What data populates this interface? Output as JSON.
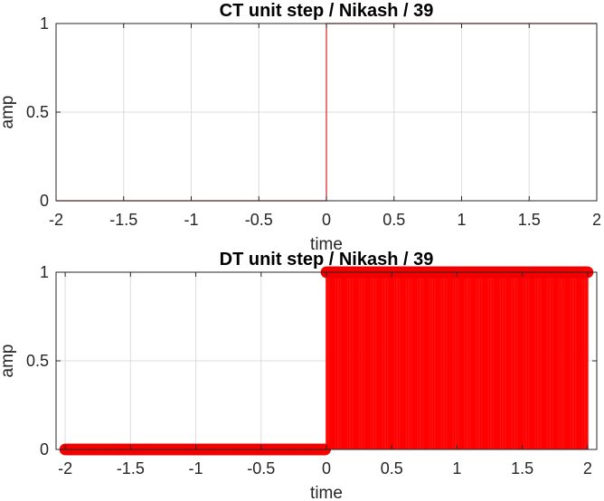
{
  "chart_data": [
    {
      "type": "line",
      "title": "CT unit step / Nikash / 39",
      "xlabel": "time",
      "ylabel": "amp",
      "xlim": [
        -2,
        2
      ],
      "ylim": [
        0,
        1
      ],
      "xticks": [
        -2,
        -1.5,
        -1,
        -0.5,
        0,
        0.5,
        1,
        1.5,
        2
      ],
      "xtick_labels": [
        "-2",
        "-1.5",
        "-1",
        "-0.5",
        "0",
        "0.5",
        "1",
        "1.5",
        "2"
      ],
      "yticks": [
        0,
        0.5,
        1
      ],
      "ytick_labels": [
        "0",
        "0.5",
        "1"
      ],
      "grid": true,
      "series": [
        {
          "color": "#e41a1c",
          "x": [
            -2,
            0,
            0,
            2
          ],
          "y": [
            0,
            0,
            1,
            1
          ]
        }
      ]
    },
    {
      "type": "stem",
      "title": "DT unit step / Nikash / 39",
      "xlabel": "time",
      "ylabel": "amp",
      "xlim": [
        -2.07,
        2.07
      ],
      "ylim": [
        0,
        1
      ],
      "xticks": [
        -2,
        -1.5,
        -1,
        -0.5,
        0,
        0.5,
        1,
        1.5,
        2
      ],
      "xtick_labels": [
        "-2",
        "-1.5",
        "-1",
        "-0.5",
        "0",
        "0.5",
        "1",
        "1.5",
        "2"
      ],
      "yticks": [
        0,
        0.5,
        1
      ],
      "ytick_labels": [
        "0",
        "0.5",
        "1"
      ],
      "grid": true,
      "series": [
        {
          "color": "#ff0000",
          "x_start": -2,
          "x_end": 2,
          "step": 0.01,
          "rule": "amp = 1 for time >= 0, otherwise 0"
        }
      ]
    }
  ]
}
